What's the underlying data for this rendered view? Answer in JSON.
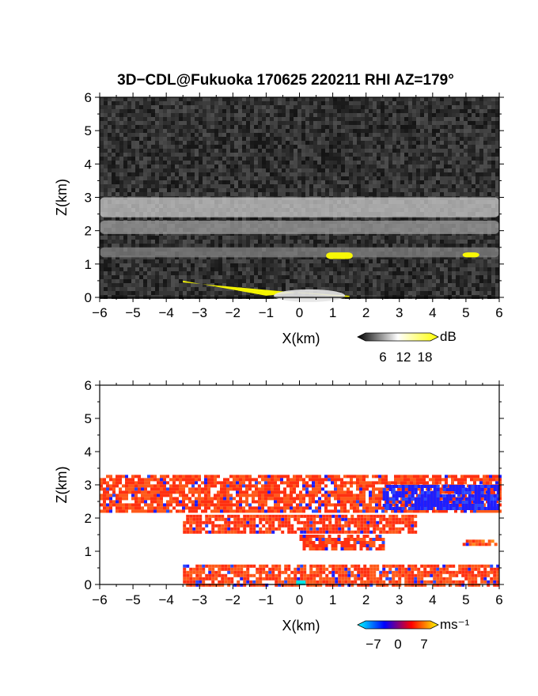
{
  "title": "3D−CDL@Fukuoka 170625 220211 RHI AZ=179°",
  "chart_data": [
    {
      "type": "heatmap",
      "quantity": "reflectivity / SNR",
      "xlabel": "X(km)",
      "ylabel": "Z(km)",
      "xlim": [
        -6,
        6
      ],
      "ylim": [
        0,
        6
      ],
      "xticks": [
        -6,
        -5,
        -4,
        -3,
        -2,
        -1,
        0,
        1,
        2,
        3,
        4,
        5,
        6
      ],
      "yticks": [
        0,
        1,
        2,
        3,
        4,
        5,
        6
      ],
      "colorbar": {
        "unit": "dB",
        "ticks": [
          6,
          12,
          18
        ],
        "colors": [
          "#000000",
          "#ffffff",
          "#ffff00"
        ]
      },
      "features": [
        {
          "label": "cloud layer",
          "x": [
            -6,
            6
          ],
          "z": [
            2.4,
            3.0
          ],
          "level_db": 16
        },
        {
          "label": "cloud layer",
          "x": [
            -6,
            6
          ],
          "z": [
            1.9,
            2.3
          ],
          "level_db": 11
        },
        {
          "label": "aerosol layer",
          "x": [
            -6,
            6
          ],
          "z": [
            1.2,
            1.5
          ],
          "level_db": 8
        },
        {
          "label": "saturated echo",
          "x": [
            0.8,
            1.6
          ],
          "z": [
            1.15,
            1.35
          ],
          "level_db": 20
        },
        {
          "label": "saturated echo",
          "x": [
            4.9,
            5.4
          ],
          "z": [
            1.2,
            1.35
          ],
          "level_db": 20
        },
        {
          "label": "near-ground echo",
          "x": [
            -3.5,
            1.5
          ],
          "z": [
            0.0,
            0.5
          ],
          "level_db": 20
        }
      ]
    },
    {
      "type": "heatmap",
      "quantity": "Doppler velocity",
      "xlabel": "X(km)",
      "ylabel": "Z(km)",
      "xlim": [
        -6,
        6
      ],
      "ylim": [
        0,
        6
      ],
      "xticks": [
        -6,
        -5,
        -4,
        -3,
        -2,
        -1,
        0,
        1,
        2,
        3,
        4,
        5,
        6
      ],
      "yticks": [
        0,
        1,
        2,
        3,
        4,
        5,
        6
      ],
      "colorbar": {
        "unit": "ms⁻¹",
        "ticks": [
          -7,
          0,
          7
        ],
        "colors": [
          "#00ffff",
          "#0000ff",
          "#ff0000",
          "#ffff00"
        ]
      },
      "features": [
        {
          "label": "layer",
          "x": [
            -6,
            6
          ],
          "z": [
            2.2,
            3.3
          ],
          "velocity": 3
        },
        {
          "label": "layer",
          "x": [
            2.5,
            6
          ],
          "z": [
            2.3,
            3.0
          ],
          "velocity": -5
        },
        {
          "label": "layer",
          "x": [
            -3.5,
            3.5
          ],
          "z": [
            1.6,
            2.1
          ],
          "velocity": 2
        },
        {
          "label": "layer",
          "x": [
            0,
            2.5
          ],
          "z": [
            1.1,
            1.5
          ],
          "velocity": 3
        },
        {
          "label": "layer",
          "x": [
            4.9,
            5.9
          ],
          "z": [
            1.2,
            1.35
          ],
          "velocity": 4
        },
        {
          "label": "layer",
          "x": [
            -3.5,
            6
          ],
          "z": [
            0.0,
            0.6
          ],
          "velocity": 3
        }
      ]
    }
  ]
}
